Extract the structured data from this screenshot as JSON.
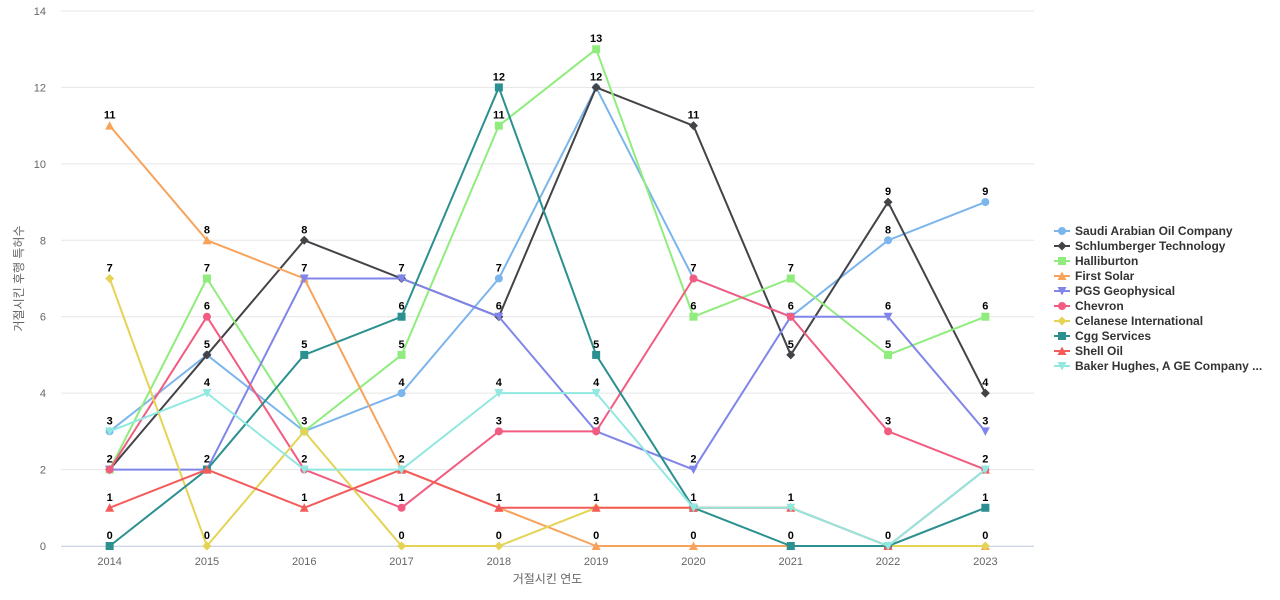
{
  "chart_data": {
    "type": "line",
    "title": "",
    "xlabel": "거절시킨 연도",
    "ylabel": "거절시킨 후행 특허수",
    "x": [
      "2014",
      "2015",
      "2016",
      "2017",
      "2018",
      "2019",
      "2020",
      "2021",
      "2022",
      "2023"
    ],
    "ylim": [
      0,
      14
    ],
    "yticks": [
      0,
      2,
      4,
      6,
      8,
      10,
      12,
      14
    ],
    "grid": true,
    "legend_position": "right",
    "series": [
      {
        "name": "Saudi Arabian Oil Company",
        "color": "#7cb5ec",
        "marker": "circle",
        "values": [
          3,
          5,
          3,
          4,
          7,
          12,
          7,
          6,
          8,
          9
        ]
      },
      {
        "name": "Schlumberger Technology",
        "color": "#434348",
        "marker": "diamond",
        "values": [
          2,
          5,
          8,
          7,
          6,
          12,
          11,
          5,
          9,
          4
        ]
      },
      {
        "name": "Halliburton",
        "color": "#90ed7d",
        "marker": "square",
        "values": [
          2,
          7,
          3,
          5,
          11,
          13,
          6,
          7,
          5,
          6
        ]
      },
      {
        "name": "First Solar",
        "color": "#f7a35c",
        "marker": "triangle",
        "values": [
          11,
          8,
          7,
          2,
          1,
          0,
          0,
          0,
          0,
          0
        ]
      },
      {
        "name": "PGS Geophysical",
        "color": "#8085e9",
        "marker": "triangle-down",
        "values": [
          2,
          2,
          7,
          7,
          6,
          3,
          2,
          6,
          6,
          3
        ]
      },
      {
        "name": "Chevron",
        "color": "#f15c80",
        "marker": "circle",
        "values": [
          2,
          6,
          2,
          1,
          3,
          3,
          7,
          6,
          3,
          2
        ]
      },
      {
        "name": "Celanese International",
        "color": "#e4d354",
        "marker": "diamond",
        "values": [
          7,
          0,
          3,
          0,
          0,
          1,
          1,
          1,
          0,
          0
        ]
      },
      {
        "name": "Cgg Services",
        "color": "#2b908f",
        "marker": "square",
        "values": [
          0,
          2,
          5,
          6,
          12,
          5,
          1,
          0,
          0,
          1
        ]
      },
      {
        "name": "Shell Oil",
        "color": "#f45b5b",
        "marker": "triangle",
        "values": [
          1,
          2,
          1,
          2,
          1,
          1,
          1,
          1,
          0,
          2
        ]
      },
      {
        "name": "Baker Hughes, A GE Company ...",
        "color": "#91e8e1",
        "marker": "triangle-down",
        "values": [
          3,
          4,
          2,
          2,
          4,
          4,
          1,
          1,
          0,
          2
        ]
      }
    ],
    "data_labels": [
      {
        "x": "2014",
        "value": 11
      },
      {
        "x": "2014",
        "value": 7
      },
      {
        "x": "2014",
        "value": 3
      },
      {
        "x": "2014",
        "value": 2
      },
      {
        "x": "2014",
        "value": 1
      },
      {
        "x": "2014",
        "value": 0
      },
      {
        "x": "2015",
        "value": 8
      },
      {
        "x": "2015",
        "value": 7
      },
      {
        "x": "2015",
        "value": 6
      },
      {
        "x": "2015",
        "value": 5
      },
      {
        "x": "2015",
        "value": 4
      },
      {
        "x": "2015",
        "value": 2
      },
      {
        "x": "2015",
        "value": 0
      },
      {
        "x": "2016",
        "value": 8
      },
      {
        "x": "2016",
        "value": 7
      },
      {
        "x": "2016",
        "value": 5
      },
      {
        "x": "2016",
        "value": 3
      },
      {
        "x": "2016",
        "value": 2
      },
      {
        "x": "2016",
        "value": 1
      },
      {
        "x": "2017",
        "value": 7
      },
      {
        "x": "2017",
        "value": 6
      },
      {
        "x": "2017",
        "value": 5
      },
      {
        "x": "2017",
        "value": 4
      },
      {
        "x": "2017",
        "value": 2
      },
      {
        "x": "2017",
        "value": 1
      },
      {
        "x": "2017",
        "value": 0
      },
      {
        "x": "2018",
        "value": 12
      },
      {
        "x": "2018",
        "value": 11
      },
      {
        "x": "2018",
        "value": 7
      },
      {
        "x": "2018",
        "value": 6
      },
      {
        "x": "2018",
        "value": 4
      },
      {
        "x": "2018",
        "value": 3
      },
      {
        "x": "2018",
        "value": 1
      },
      {
        "x": "2018",
        "value": 0
      },
      {
        "x": "2019",
        "value": 13
      },
      {
        "x": "2019",
        "value": 12
      },
      {
        "x": "2019",
        "value": 5
      },
      {
        "x": "2019",
        "value": 4
      },
      {
        "x": "2019",
        "value": 3
      },
      {
        "x": "2019",
        "value": 1
      },
      {
        "x": "2019",
        "value": 0
      },
      {
        "x": "2020",
        "value": 11
      },
      {
        "x": "2020",
        "value": 7
      },
      {
        "x": "2020",
        "value": 6
      },
      {
        "x": "2020",
        "value": 2
      },
      {
        "x": "2020",
        "value": 1
      },
      {
        "x": "2020",
        "value": 0
      },
      {
        "x": "2021",
        "value": 7
      },
      {
        "x": "2021",
        "value": 6
      },
      {
        "x": "2021",
        "value": 5
      },
      {
        "x": "2021",
        "value": 1
      },
      {
        "x": "2021",
        "value": 0
      },
      {
        "x": "2022",
        "value": 9
      },
      {
        "x": "2022",
        "value": 8
      },
      {
        "x": "2022",
        "value": 6
      },
      {
        "x": "2022",
        "value": 5
      },
      {
        "x": "2022",
        "value": 3
      },
      {
        "x": "2022",
        "value": 0
      },
      {
        "x": "2023",
        "value": 9
      },
      {
        "x": "2023",
        "value": 6
      },
      {
        "x": "2023",
        "value": 4
      },
      {
        "x": "2023",
        "value": 3
      },
      {
        "x": "2023",
        "value": 2
      },
      {
        "x": "2023",
        "value": 1
      },
      {
        "x": "2023",
        "value": 0
      }
    ]
  }
}
